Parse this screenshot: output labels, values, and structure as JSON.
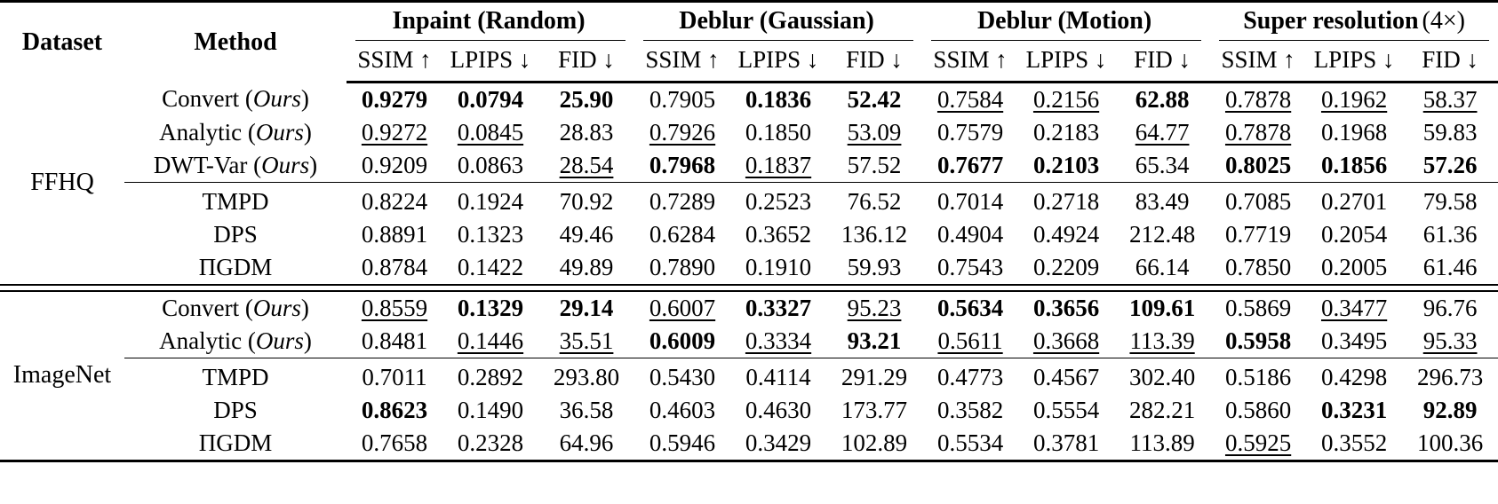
{
  "table": {
    "header": {
      "dataset_label": "Dataset",
      "method_label": "Method",
      "groups": [
        {
          "label": "Inpaint (Random)",
          "suffix": ""
        },
        {
          "label": "Deblur (Gaussian)",
          "suffix": ""
        },
        {
          "label": "Deblur (Motion)",
          "suffix": ""
        },
        {
          "label": "Super resolution",
          "suffix": "(4×)"
        }
      ],
      "metrics": [
        "SSIM ↑",
        "LPIPS ↓",
        "FID ↓"
      ]
    },
    "format_legend": {
      "b": "bold-best",
      "u": "underline-second-best",
      "": "plain"
    },
    "sections": [
      {
        "dataset": "FFHQ",
        "ours_rows": [
          {
            "method": {
              "name": "Convert",
              "tag": "Ours"
            },
            "cells": [
              [
                "0.9279",
                "b"
              ],
              [
                "0.0794",
                "b"
              ],
              [
                "25.90",
                "b"
              ],
              [
                "0.7905",
                ""
              ],
              [
                "0.1836",
                "b"
              ],
              [
                "52.42",
                "b"
              ],
              [
                "0.7584",
                "u"
              ],
              [
                "0.2156",
                "u"
              ],
              [
                "62.88",
                "b"
              ],
              [
                "0.7878",
                "u"
              ],
              [
                "0.1962",
                "u"
              ],
              [
                "58.37",
                "u"
              ]
            ]
          },
          {
            "method": {
              "name": "Analytic",
              "tag": "Ours"
            },
            "cells": [
              [
                "0.9272",
                "u"
              ],
              [
                "0.0845",
                "u"
              ],
              [
                "28.83",
                ""
              ],
              [
                "0.7926",
                "u"
              ],
              [
                "0.1850",
                ""
              ],
              [
                "53.09",
                "u"
              ],
              [
                "0.7579",
                ""
              ],
              [
                "0.2183",
                ""
              ],
              [
                "64.77",
                "u"
              ],
              [
                "0.7878",
                "u"
              ],
              [
                "0.1968",
                ""
              ],
              [
                "59.83",
                ""
              ]
            ]
          },
          {
            "method": {
              "name": "DWT-Var",
              "tag": "Ours"
            },
            "cells": [
              [
                "0.9209",
                ""
              ],
              [
                "0.0863",
                ""
              ],
              [
                "28.54",
                "u"
              ],
              [
                "0.7968",
                "b"
              ],
              [
                "0.1837",
                "u"
              ],
              [
                "57.52",
                ""
              ],
              [
                "0.7677",
                "b"
              ],
              [
                "0.2103",
                "b"
              ],
              [
                "65.34",
                ""
              ],
              [
                "0.8025",
                "b"
              ],
              [
                "0.1856",
                "b"
              ],
              [
                "57.26",
                "b"
              ]
            ]
          }
        ],
        "baseline_rows": [
          {
            "method": {
              "name": "TMPD",
              "tag": null
            },
            "cells": [
              [
                "0.8224",
                ""
              ],
              [
                "0.1924",
                ""
              ],
              [
                "70.92",
                ""
              ],
              [
                "0.7289",
                ""
              ],
              [
                "0.2523",
                ""
              ],
              [
                "76.52",
                ""
              ],
              [
                "0.7014",
                ""
              ],
              [
                "0.2718",
                ""
              ],
              [
                "83.49",
                ""
              ],
              [
                "0.7085",
                ""
              ],
              [
                "0.2701",
                ""
              ],
              [
                "79.58",
                ""
              ]
            ]
          },
          {
            "method": {
              "name": "DPS",
              "tag": null
            },
            "cells": [
              [
                "0.8891",
                ""
              ],
              [
                "0.1323",
                ""
              ],
              [
                "49.46",
                ""
              ],
              [
                "0.6284",
                ""
              ],
              [
                "0.3652",
                ""
              ],
              [
                "136.12",
                ""
              ],
              [
                "0.4904",
                ""
              ],
              [
                "0.4924",
                ""
              ],
              [
                "212.48",
                ""
              ],
              [
                "0.7719",
                ""
              ],
              [
                "0.2054",
                ""
              ],
              [
                "61.36",
                ""
              ]
            ]
          },
          {
            "method": {
              "name": "ΠGDM",
              "tag": null
            },
            "cells": [
              [
                "0.8784",
                ""
              ],
              [
                "0.1422",
                ""
              ],
              [
                "49.89",
                ""
              ],
              [
                "0.7890",
                ""
              ],
              [
                "0.1910",
                ""
              ],
              [
                "59.93",
                ""
              ],
              [
                "0.7543",
                ""
              ],
              [
                "0.2209",
                ""
              ],
              [
                "66.14",
                ""
              ],
              [
                "0.7850",
                ""
              ],
              [
                "0.2005",
                ""
              ],
              [
                "61.46",
                ""
              ]
            ]
          }
        ]
      },
      {
        "dataset": "ImageNet",
        "ours_rows": [
          {
            "method": {
              "name": "Convert",
              "tag": "Ours"
            },
            "cells": [
              [
                "0.8559",
                "u"
              ],
              [
                "0.1329",
                "b"
              ],
              [
                "29.14",
                "b"
              ],
              [
                "0.6007",
                "u"
              ],
              [
                "0.3327",
                "b"
              ],
              [
                "95.23",
                "u"
              ],
              [
                "0.5634",
                "b"
              ],
              [
                "0.3656",
                "b"
              ],
              [
                "109.61",
                "b"
              ],
              [
                "0.5869",
                ""
              ],
              [
                "0.3477",
                "u"
              ],
              [
                "96.76",
                ""
              ]
            ]
          },
          {
            "method": {
              "name": "Analytic",
              "tag": "Ours"
            },
            "cells": [
              [
                "0.8481",
                ""
              ],
              [
                "0.1446",
                "u"
              ],
              [
                "35.51",
                "u"
              ],
              [
                "0.6009",
                "b"
              ],
              [
                "0.3334",
                "u"
              ],
              [
                "93.21",
                "b"
              ],
              [
                "0.5611",
                "u"
              ],
              [
                "0.3668",
                "u"
              ],
              [
                "113.39",
                "u"
              ],
              [
                "0.5958",
                "b"
              ],
              [
                "0.3495",
                ""
              ],
              [
                "95.33",
                "u"
              ]
            ]
          }
        ],
        "baseline_rows": [
          {
            "method": {
              "name": "TMPD",
              "tag": null
            },
            "cells": [
              [
                "0.7011",
                ""
              ],
              [
                "0.2892",
                ""
              ],
              [
                "293.80",
                ""
              ],
              [
                "0.5430",
                ""
              ],
              [
                "0.4114",
                ""
              ],
              [
                "291.29",
                ""
              ],
              [
                "0.4773",
                ""
              ],
              [
                "0.4567",
                ""
              ],
              [
                "302.40",
                ""
              ],
              [
                "0.5186",
                ""
              ],
              [
                "0.4298",
                ""
              ],
              [
                "296.73",
                ""
              ]
            ]
          },
          {
            "method": {
              "name": "DPS",
              "tag": null
            },
            "cells": [
              [
                "0.8623",
                "b"
              ],
              [
                "0.1490",
                ""
              ],
              [
                "36.58",
                ""
              ],
              [
                "0.4603",
                ""
              ],
              [
                "0.4630",
                ""
              ],
              [
                "173.77",
                ""
              ],
              [
                "0.3582",
                ""
              ],
              [
                "0.5554",
                ""
              ],
              [
                "282.21",
                ""
              ],
              [
                "0.5860",
                ""
              ],
              [
                "0.3231",
                "b"
              ],
              [
                "92.89",
                "b"
              ]
            ]
          },
          {
            "method": {
              "name": "ΠGDM",
              "tag": null
            },
            "cells": [
              [
                "0.7658",
                ""
              ],
              [
                "0.2328",
                ""
              ],
              [
                "64.96",
                ""
              ],
              [
                "0.5946",
                ""
              ],
              [
                "0.3429",
                ""
              ],
              [
                "102.89",
                ""
              ],
              [
                "0.5534",
                ""
              ],
              [
                "0.3781",
                ""
              ],
              [
                "113.89",
                ""
              ],
              [
                "0.5925",
                "u"
              ],
              [
                "0.3552",
                ""
              ],
              [
                "100.36",
                ""
              ]
            ]
          }
        ]
      }
    ]
  }
}
